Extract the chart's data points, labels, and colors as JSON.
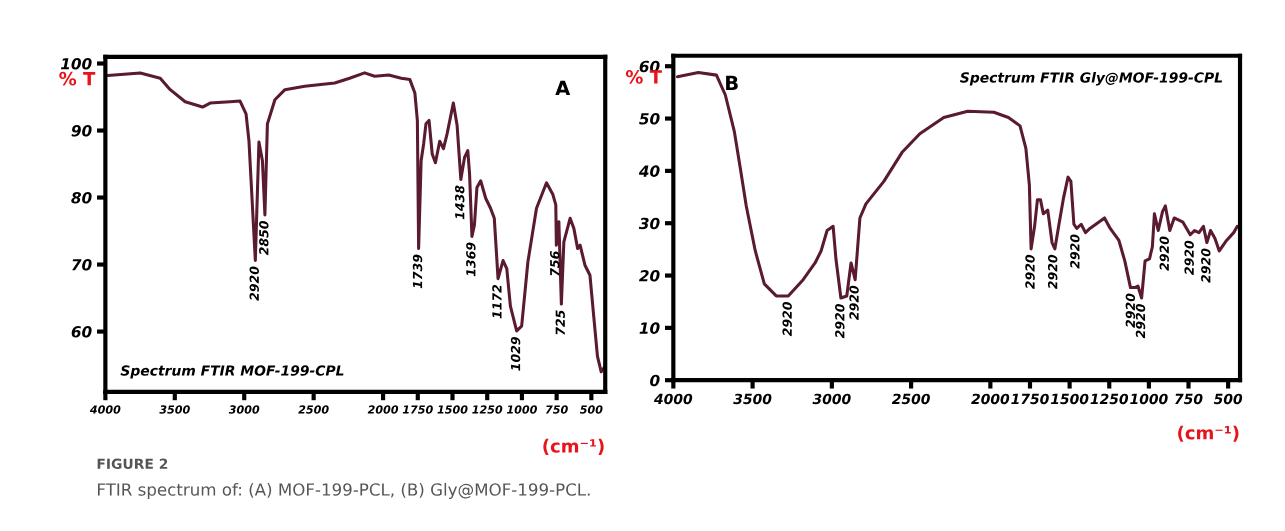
{
  "chart_data": [
    {
      "type": "line",
      "title": "A",
      "ylabel": "% T",
      "xlabel": "(cm⁻¹)",
      "x": [
        3982,
        3749,
        3605,
        3533,
        3425,
        3300,
        3246,
        3102,
        3030,
        2987,
        2966,
        2920,
        2894,
        2869,
        2851,
        2833,
        2779,
        2707,
        2564,
        2348,
        2241,
        2133,
        2061,
        1959,
        1869,
        1807,
        1771,
        1753,
        1744,
        1726,
        1708,
        1691,
        1669,
        1646,
        1623,
        1592,
        1565,
        1539,
        1494,
        1467,
        1440,
        1413,
        1390,
        1377,
        1360,
        1342,
        1324,
        1297,
        1261,
        1226,
        1199,
        1172,
        1136,
        1109,
        1083,
        1038,
        1002,
        957,
        895,
        823,
        778,
        756,
        752,
        734,
        716,
        698,
        653,
        626,
        599,
        581,
        546,
        510,
        483,
        456,
        429,
        402
      ],
      "series": [
        {
          "color": "#5a1a32",
          "values": [
            98.2,
            98.6,
            97.8,
            96.1,
            94.3,
            93.5,
            94.1,
            94.3,
            94.4,
            92.5,
            88.5,
            70.6,
            88.3,
            85.5,
            77.4,
            91.0,
            94.6,
            96.1,
            96.6,
            97.1,
            97.8,
            98.6,
            98.1,
            98.3,
            97.8,
            97.6,
            95.6,
            91.5,
            72.4,
            85.5,
            88.0,
            91.0,
            91.5,
            86.5,
            85.2,
            88.4,
            87.3,
            89.5,
            94.1,
            90.8,
            82.7,
            86.0,
            87.0,
            83.5,
            74.2,
            75.9,
            81.5,
            82.5,
            79.9,
            78.4,
            76.9,
            67.9,
            70.6,
            69.4,
            63.8,
            60.1,
            60.8,
            70.4,
            78.4,
            82.2,
            80.5,
            78.9,
            72.9,
            76.4,
            64.1,
            73.4,
            76.9,
            75.4,
            72.4,
            72.9,
            69.9,
            68.4,
            62.3,
            56.3,
            54.0,
            54.8
          ]
        }
      ],
      "xlim": [
        4000,
        400
      ],
      "ylim": [
        51,
        101
      ],
      "xticks": [
        4000,
        3500,
        3000,
        2500,
        2000,
        1750,
        1500,
        1250,
        1000,
        750,
        500
      ],
      "yticks": [
        60,
        70,
        80,
        90,
        100
      ],
      "grid": false,
      "annotations": [
        {
          "text": "2920",
          "x": 2920,
          "y": 70.6
        },
        {
          "text": "2850",
          "x": 2851,
          "y": 77.4
        },
        {
          "text": "1739",
          "x": 1744,
          "y": 72.4
        },
        {
          "text": "1438",
          "x": 1440,
          "y": 82.7
        },
        {
          "text": "1369",
          "x": 1360,
          "y": 74.2
        },
        {
          "text": "1172",
          "x": 1172,
          "y": 67.9
        },
        {
          "text": "1029",
          "x": 1038,
          "y": 60.1
        },
        {
          "text": "756",
          "x": 756,
          "y": 72.9
        },
        {
          "text": "725",
          "x": 716,
          "y": 64.1
        },
        "Spectrum FTIR MOF-199-CPL",
        "FIGURE 2",
        "FTIR spectrum of: (A) MOF-199-PCL, (B) Gly@MOF-199-PCL."
      ]
    },
    {
      "type": "line",
      "title": "B",
      "ylabel": "% T",
      "xlabel": "(cm⁻¹)",
      "x": [
        3974,
        3842,
        3728,
        3672,
        3615,
        3577,
        3540,
        3483,
        3426,
        3351,
        3275,
        3181,
        3106,
        3068,
        3030,
        2992,
        2974,
        2943,
        2906,
        2879,
        2853,
        2823,
        2785,
        2672,
        2558,
        2445,
        2294,
        2143,
        1978,
        1886,
        1813,
        1776,
        1754,
        1743,
        1721,
        1703,
        1684,
        1666,
        1638,
        1611,
        1593,
        1565,
        1538,
        1510,
        1492,
        1473,
        1455,
        1427,
        1400,
        1372,
        1317,
        1280,
        1244,
        1189,
        1152,
        1116,
        1088,
        1069,
        1046,
        1024,
        996,
        978,
        965,
        941,
        914,
        896,
        868,
        840,
        785,
        739,
        712,
        684,
        656,
        634,
        611,
        583,
        556,
        510,
        465,
        442
      ],
      "series": [
        {
          "color": "#5a1a32",
          "values": [
            58.0,
            58.8,
            58.3,
            54.5,
            47.5,
            40.4,
            33.3,
            24.7,
            18.4,
            16.1,
            16.1,
            19.2,
            22.4,
            24.7,
            28.6,
            29.4,
            23.1,
            15.7,
            16.1,
            22.4,
            19.2,
            31.0,
            33.7,
            38.0,
            43.5,
            47.1,
            50.2,
            51.4,
            51.2,
            50.2,
            48.6,
            44.3,
            37.3,
            25.1,
            29.4,
            34.5,
            34.5,
            31.8,
            32.5,
            26.3,
            25.1,
            30.2,
            34.9,
            38.8,
            38.0,
            29.8,
            29.0,
            29.8,
            28.2,
            29.0,
            30.2,
            31.0,
            29.0,
            26.7,
            22.8,
            17.7,
            17.7,
            18.0,
            15.7,
            22.8,
            23.2,
            25.5,
            31.8,
            28.6,
            32.2,
            33.3,
            28.6,
            31.0,
            30.2,
            27.8,
            28.6,
            28.2,
            29.4,
            26.3,
            28.6,
            27.1,
            24.7,
            26.7,
            28.2,
            29.4
          ]
        }
      ],
      "xlim": [
        4000,
        425
      ],
      "ylim": [
        0,
        62
      ],
      "xticks": [
        4000,
        3500,
        3000,
        2500,
        2000,
        1750,
        1500,
        1250,
        1000,
        750,
        500
      ],
      "yticks": [
        0,
        10,
        20,
        30,
        40,
        50,
        60
      ],
      "grid": false,
      "annotations": [
        {
          "text": "2920",
          "x": 3275,
          "y": 16.1
        },
        {
          "text": "2920",
          "x": 2943,
          "y": 15.7
        },
        {
          "text": "2920",
          "x": 2853,
          "y": 19.2
        },
        {
          "text": "2920",
          "x": 1743,
          "y": 25.1
        },
        {
          "text": "2920",
          "x": 1600,
          "y": 25.1
        },
        {
          "text": "2920",
          "x": 1460,
          "y": 29.0
        },
        {
          "text": "2920",
          "x": 1110,
          "y": 17.7
        },
        {
          "text": "2920",
          "x": 1046,
          "y": 15.7
        },
        {
          "text": "2920",
          "x": 896,
          "y": 28.6
        },
        {
          "text": "2920",
          "x": 739,
          "y": 27.8
        },
        {
          "text": "2920",
          "x": 634,
          "y": 26.3
        },
        "Spectrum FTIR Gly@MOF-199-CPL"
      ]
    }
  ]
}
